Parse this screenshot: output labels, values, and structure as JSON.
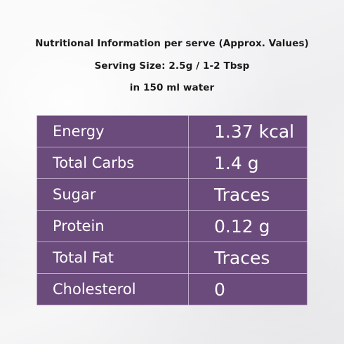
{
  "header": {
    "line1": "Nutritional Information per serve (Approx. Values)",
    "line2": "Serving Size: 2.5g / 1-2 Tbsp",
    "line3": "in 150 ml water"
  },
  "table": {
    "rows": [
      {
        "label": "Energy",
        "value": "1.37 kcal"
      },
      {
        "label": "Total Carbs",
        "value": "1.4 g"
      },
      {
        "label": "Sugar",
        "value": "Traces"
      },
      {
        "label": "Protein",
        "value": "0.12 g"
      },
      {
        "label": "Total Fat",
        "value": "Traces"
      },
      {
        "label": "Cholesterol",
        "value": "0"
      }
    ]
  },
  "colors": {
    "table_background": "#6b4a7c",
    "table_text": "#ffffff",
    "page_background": "#f3f3f4"
  }
}
